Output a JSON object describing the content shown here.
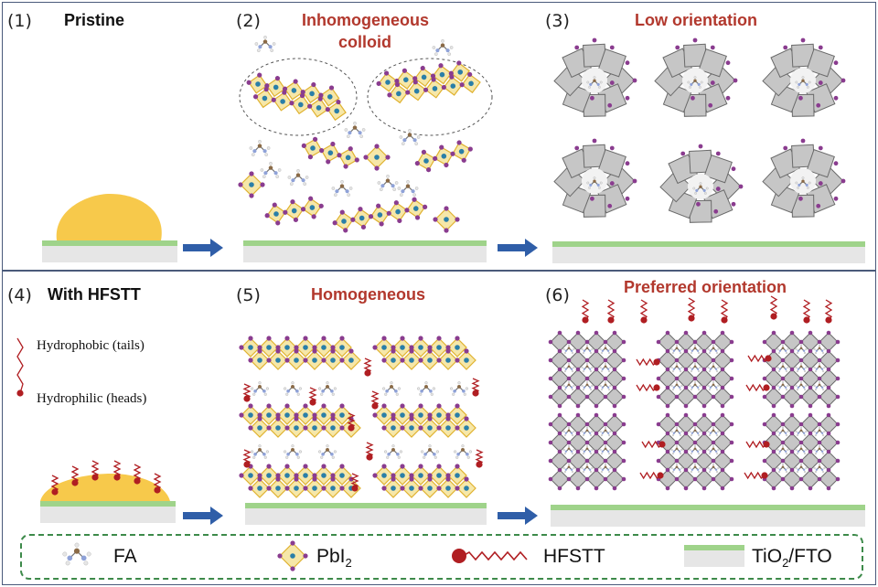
{
  "panels": [
    {
      "num": "(1)",
      "title": "Pristine",
      "title_color": "#111111"
    },
    {
      "num": "(2)",
      "title": "Inhomogeneous",
      "subtitle": "colloid",
      "title_color": "#b2382d"
    },
    {
      "num": "(3)",
      "title": "Low orientation",
      "title_color": "#b2382d"
    },
    {
      "num": "(4)",
      "title": "With HFSTT",
      "title_color": "#111111"
    },
    {
      "num": "(5)",
      "title": "Homogeneous",
      "title_color": "#b2382d"
    },
    {
      "num": "(6)",
      "title": "Preferred orientation",
      "title_color": "#b2382d"
    }
  ],
  "annotations": {
    "hydrophobic": "Hydrophobic (tails)",
    "hydrophilic": "Hydrophilic (heads)"
  },
  "legend": {
    "fa": "FA",
    "pbi2_main": "PbI",
    "pbi2_sub": "2",
    "hfstt": "HFSTT",
    "substrate_main": "TiO",
    "substrate_sub": "2",
    "substrate_rest": "/FTO"
  },
  "colors": {
    "droplet": "#f7c94b",
    "substrate_top": "#9fd38a",
    "substrate_base": "#e6e6e6",
    "arrow": "#2f5ea8",
    "octahedron": "#f6e7a8",
    "octahedron_edge": "#e0b230",
    "gray_octa": "#c6c6c6",
    "iodide": "#8a3c8f",
    "lead": "#2a7fa8",
    "hfstt": "#b01e22"
  }
}
